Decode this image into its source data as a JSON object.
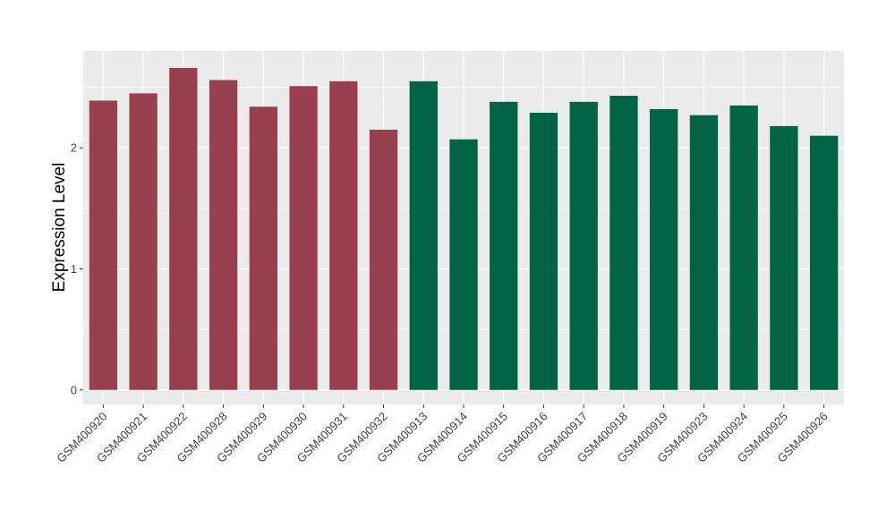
{
  "chart_data": {
    "type": "bar",
    "title": "",
    "xlabel": "",
    "ylabel": "Expression Level",
    "ylim": [
      -0.12,
      2.8
    ],
    "yticks": [
      0,
      1,
      2
    ],
    "grid": true,
    "categories": [
      "GSM400920",
      "GSM400921",
      "GSM400922",
      "GSM400928",
      "GSM400929",
      "GSM400930",
      "GSM400931",
      "GSM400932",
      "GSM400913",
      "GSM400914",
      "GSM400915",
      "GSM400916",
      "GSM400917",
      "GSM400918",
      "GSM400919",
      "GSM400923",
      "GSM400924",
      "GSM400925",
      "GSM400926"
    ],
    "values": [
      2.39,
      2.45,
      2.66,
      2.56,
      2.34,
      2.51,
      2.55,
      2.15,
      2.55,
      2.07,
      2.38,
      2.29,
      2.38,
      2.43,
      2.32,
      2.27,
      2.35,
      2.18,
      2.1
    ],
    "groups": [
      0,
      0,
      0,
      0,
      0,
      0,
      0,
      0,
      1,
      1,
      1,
      1,
      1,
      1,
      1,
      1,
      1,
      1,
      1
    ],
    "colors": [
      "#99404f",
      "#006444"
    ],
    "panel_background": "#ebebeb",
    "grid_color": "#ffffff"
  }
}
